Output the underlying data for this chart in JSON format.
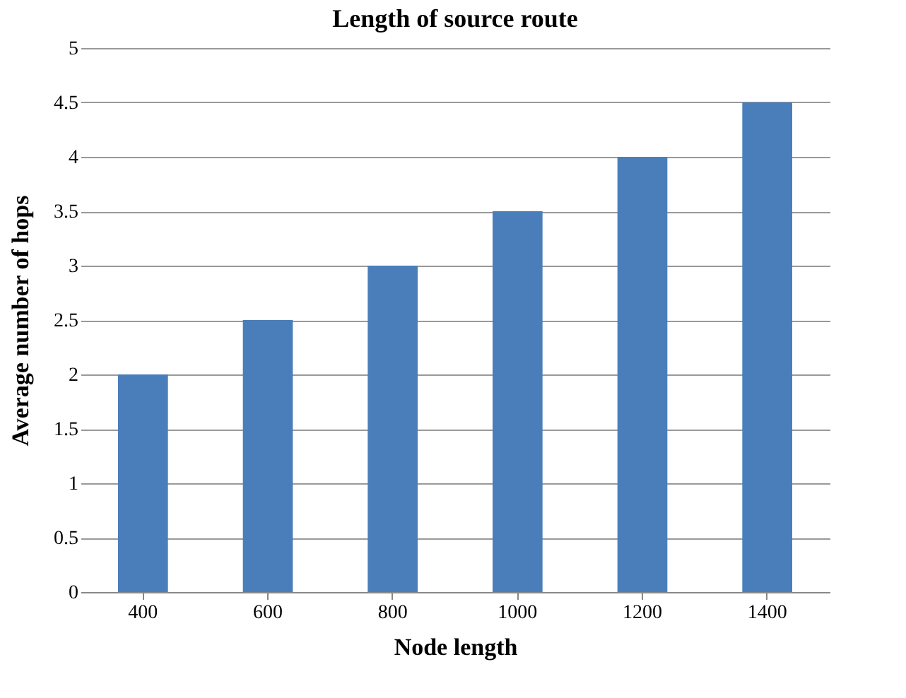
{
  "chart_data": {
    "type": "bar",
    "title": "Length of source route",
    "xlabel": "Node length",
    "ylabel": "Average number of hops",
    "categories": [
      "400",
      "600",
      "800",
      "1000",
      "1200",
      "1400"
    ],
    "values": [
      2,
      2.5,
      3,
      3.5,
      4,
      4.5
    ],
    "color": "#4a7ebb",
    "ylim": [
      0,
      5
    ],
    "yticks": [
      0,
      0.5,
      1,
      1.5,
      2,
      2.5,
      3,
      3.5,
      4,
      4.5,
      5
    ],
    "grid": "y"
  }
}
